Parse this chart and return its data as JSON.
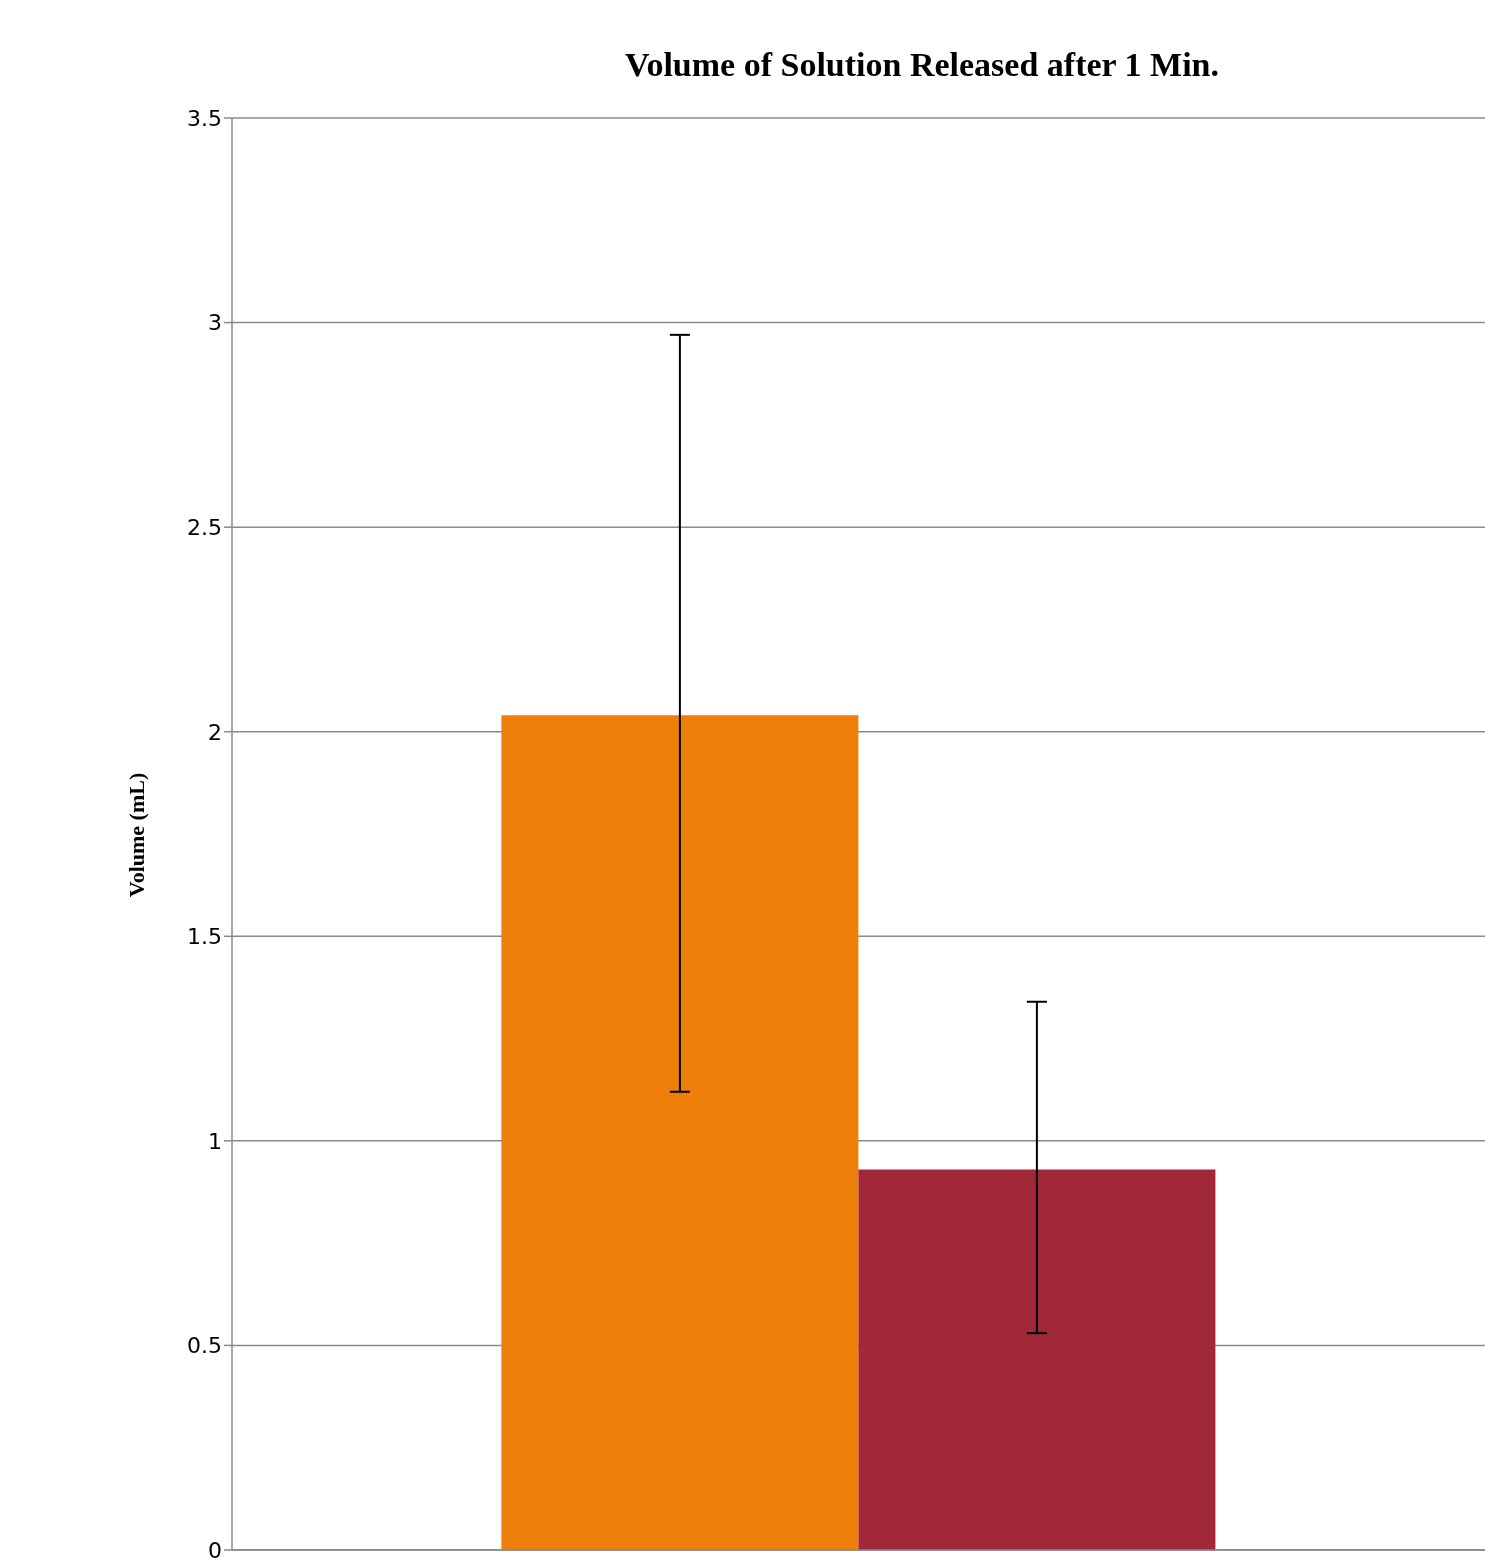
{
  "chart_data": {
    "type": "bar",
    "title": "Volume of Solution Released after 1 Min.",
    "ylabel": "Volume (mL)",
    "categories": [
      null
    ],
    "series": [
      {
        "color": "#ef7f0b",
        "values": [
          2.04
        ],
        "errors": [
          [
            1.12,
            2.97
          ]
        ]
      },
      {
        "color": "#a12837",
        "values": [
          0.93
        ],
        "errors": [
          [
            0.53,
            1.34
          ]
        ]
      }
    ],
    "ylim": [
      0,
      3.5
    ],
    "yticks": [
      0,
      0.5,
      1,
      1.5,
      2,
      2.5,
      3,
      3.5
    ],
    "grid": "y"
  }
}
